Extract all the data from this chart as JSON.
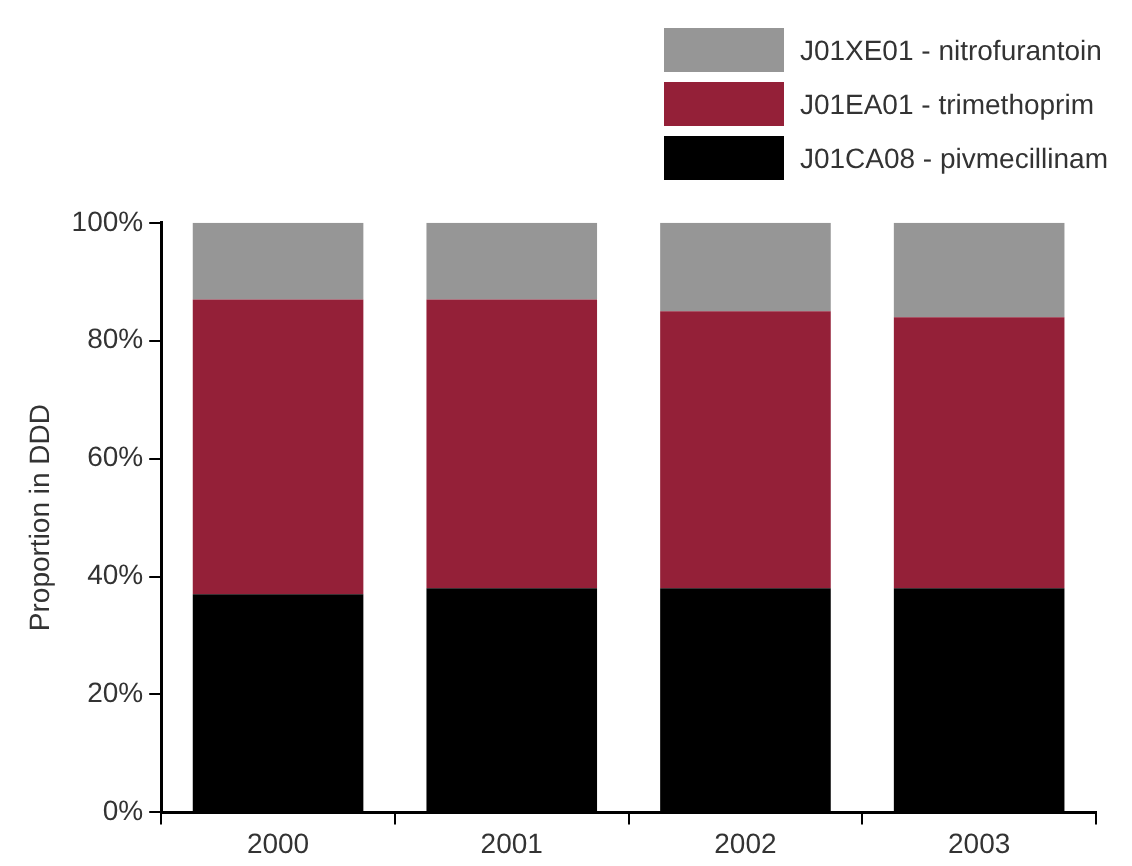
{
  "chart_data": {
    "type": "bar",
    "stacked": true,
    "ylabel": "Proportion in DDD",
    "categories": [
      "2000",
      "2001",
      "2002",
      "2003"
    ],
    "series": [
      {
        "name": "J01CA08 - pivmecillinam",
        "color": "#000000",
        "values": [
          37,
          38,
          38,
          38
        ]
      },
      {
        "name": "J01EA01 - trimethoprim",
        "color": "#942038",
        "values": [
          50,
          49,
          47,
          46
        ]
      },
      {
        "name": "J01XE01 - nitrofurantoin",
        "color": "#969696",
        "values": [
          13,
          13,
          15,
          16
        ]
      }
    ],
    "ylim": [
      0,
      100
    ],
    "yticks": [
      {
        "value": 0,
        "label": "0%"
      },
      {
        "value": 20,
        "label": "20%"
      },
      {
        "value": 40,
        "label": "40%"
      },
      {
        "value": 60,
        "label": "60%"
      },
      {
        "value": 80,
        "label": "80%"
      },
      {
        "value": 100,
        "label": "100%"
      }
    ],
    "grid": false,
    "legend": "top right"
  }
}
